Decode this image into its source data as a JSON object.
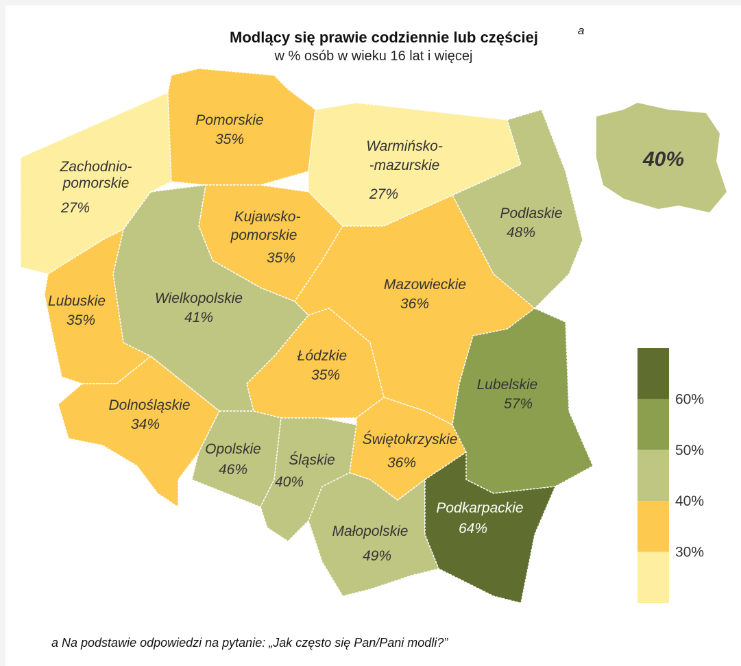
{
  "title": "Modlący się prawie codziennie lub częściej",
  "title_note": "a",
  "subtitle": "w % osób w wieku 16 lat i więcej",
  "national": {
    "value": "40%",
    "color": "#bec682"
  },
  "regions": [
    {
      "name": [
        "Zachodnio-",
        "pomorskie"
      ],
      "value": "27%",
      "color": "#fdeea0"
    },
    {
      "name": [
        "Pomorskie"
      ],
      "value": "35%",
      "color": "#fdc94e"
    },
    {
      "name": [
        "Warmińsko-",
        "-mazurskie"
      ],
      "value": "27%",
      "color": "#fdeea0"
    },
    {
      "name": [
        "Podlaskie"
      ],
      "value": "48%",
      "color": "#bec682"
    },
    {
      "name": [
        "Kujawsko-",
        "pomorskie"
      ],
      "value": "35%",
      "color": "#fdc94e"
    },
    {
      "name": [
        "Wielkopolskie"
      ],
      "value": "41%",
      "color": "#bec682"
    },
    {
      "name": [
        "Lubuskie"
      ],
      "value": "35%",
      "color": "#fdc94e"
    },
    {
      "name": [
        "Mazowieckie"
      ],
      "value": "36%",
      "color": "#fdc94e"
    },
    {
      "name": [
        "Łódzkie"
      ],
      "value": "35%",
      "color": "#fdc94e"
    },
    {
      "name": [
        "Lubelskie"
      ],
      "value": "57%",
      "color": "#8c9f4f"
    },
    {
      "name": [
        "Dolnośląskie"
      ],
      "value": "34%",
      "color": "#fdc94e"
    },
    {
      "name": [
        "Opolskie"
      ],
      "value": "46%",
      "color": "#bec682"
    },
    {
      "name": [
        "Śląskie"
      ],
      "value": "40%",
      "color": "#bec682"
    },
    {
      "name": [
        "Świętokrzyskie"
      ],
      "value": "36%",
      "color": "#fdc94e"
    },
    {
      "name": [
        "Małopolskie"
      ],
      "value": "49%",
      "color": "#bec682"
    },
    {
      "name": [
        "Podkarpackie"
      ],
      "value": "64%",
      "color": "#5f6e2e"
    }
  ],
  "legend": {
    "colors": [
      "#5f6e2e",
      "#8c9f4f",
      "#bec682",
      "#fdc94e",
      "#fdeea0"
    ],
    "labels": [
      "60%",
      "50%",
      "40%",
      "30%"
    ]
  },
  "footnote": "a Na podstawie odpowiedzi na pytanie: „Jak często się Pan/Pani modli?”"
}
